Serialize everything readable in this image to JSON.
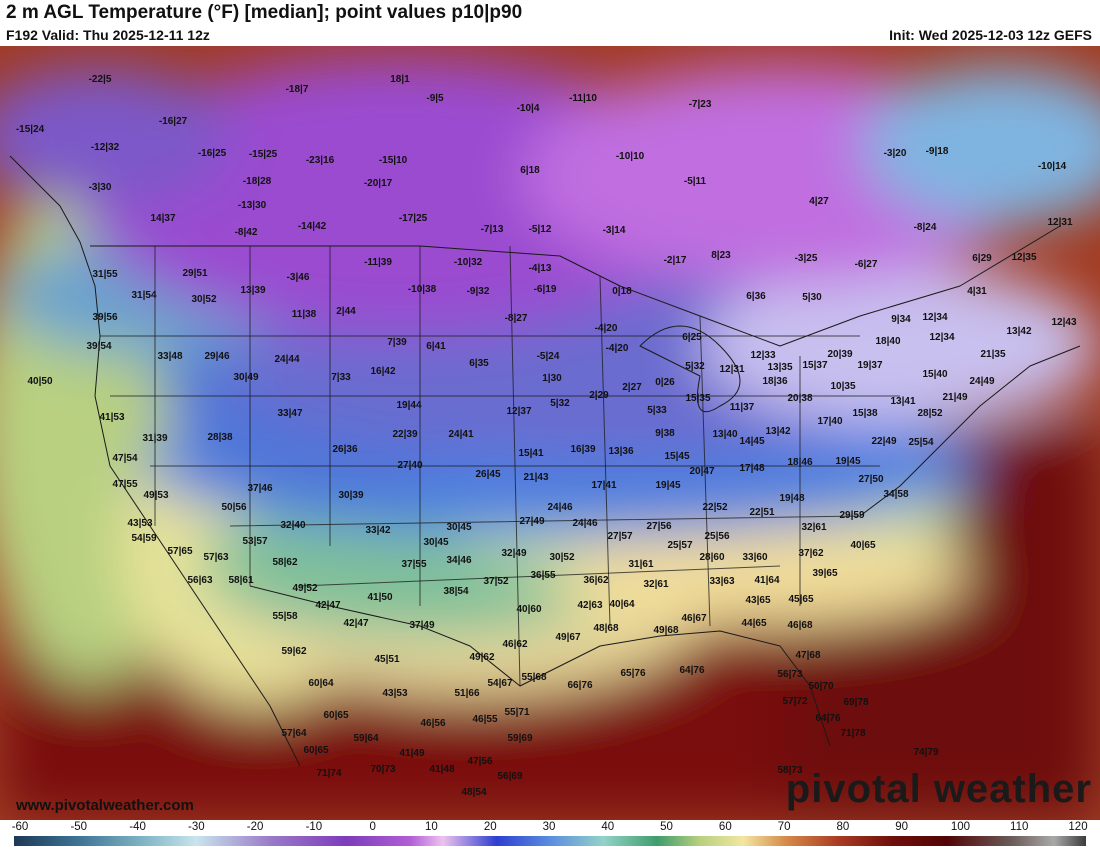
{
  "header": {
    "title": "2 m AGL Temperature (°F) [median]; point values p10|p90",
    "valid": "F192 Valid: Thu 2025-12-11 12z",
    "init": "Init: Wed 2025-12-03 12z GEFS"
  },
  "footer": {
    "website": "www.pivotalweather.com",
    "brand": "pivotal weather"
  },
  "colorbar": {
    "unit": "°F",
    "ticks": [
      "-60",
      "-50",
      "-40",
      "-30",
      "-20",
      "-10",
      "0",
      "10",
      "20",
      "30",
      "40",
      "50",
      "60",
      "70",
      "80",
      "90",
      "100",
      "110",
      "120"
    ]
  },
  "colors": {
    "arctic": "#7d3cba",
    "cold": "#3f5ed6",
    "mild": "#b8d080",
    "warm": "#d68a4a",
    "hot": "#7a1010"
  },
  "point_values": [
    "-22|5",
    "18|1",
    "-18|7",
    "-9|5",
    "-11|10",
    "-7|23",
    "-15|24",
    "-16|27",
    "-12|32",
    "-16|25",
    "-15|25",
    "-23|16",
    "-15|10",
    "-10|4",
    "-10|10",
    "6|18",
    "-3|30",
    "-18|28",
    "-20|17",
    "-13|30",
    "-5|11",
    "4|27",
    "-3|20",
    "-9|18",
    "-10|14",
    "14|37",
    "-8|42",
    "-14|42",
    "-17|25",
    "-7|13",
    "-5|12",
    "-3|14",
    "-8|24",
    "12|31",
    "-2|17",
    "8|23",
    "-3|25",
    "-6|27",
    "6|29",
    "12|35",
    "29|51",
    "-3|46",
    "-11|39",
    "-10|32",
    "-4|13",
    "31|55",
    "31|54",
    "30|52",
    "13|39",
    "-10|38",
    "-9|32",
    "-6|19",
    "0|18",
    "6|36",
    "5|30",
    "4|31",
    "39|56",
    "11|38",
    "2|44",
    "-8|27",
    "9|34",
    "12|34",
    "13|42",
    "12|43",
    "39|54",
    "33|48",
    "29|46",
    "24|44",
    "7|39",
    "6|41",
    "-4|20",
    "6|25",
    "12|33",
    "15|37",
    "20|39",
    "18|40",
    "12|34",
    "21|35",
    "40|50",
    "30|49",
    "7|33",
    "16|42",
    "6|35",
    "-5|24",
    "-4|20",
    "5|32",
    "12|31",
    "13|35",
    "19|37",
    "15|40",
    "24|49",
    "41|53",
    "33|47",
    "19|44",
    "1|30",
    "2|29",
    "2|27",
    "0|26",
    "18|36",
    "10|35",
    "20|38",
    "13|41",
    "21|49",
    "28|52",
    "31|39",
    "28|38",
    "26|36",
    "22|39",
    "24|41",
    "12|37",
    "5|32",
    "5|33",
    "15|35",
    "11|37",
    "15|38",
    "47|54",
    "27|40",
    "15|41",
    "16|39",
    "13|36",
    "9|38",
    "13|40",
    "13|42",
    "17|40",
    "22|49",
    "25|54",
    "47|55",
    "49|53",
    "37|46",
    "30|39",
    "26|45",
    "21|43",
    "15|45",
    "14|45",
    "17|48",
    "18|46",
    "19|45",
    "27|50",
    "34|58",
    "50|56",
    "24|46",
    "24|46",
    "17|41",
    "19|45",
    "20|47",
    "22|52",
    "22|51",
    "19|48",
    "29|59",
    "43|53",
    "32|40",
    "33|42",
    "30|45",
    "27|49",
    "27|57",
    "27|56",
    "25|57",
    "25|56",
    "32|61",
    "40|65",
    "54|59",
    "53|57",
    "30|45",
    "32|49",
    "30|52",
    "31|61",
    "28|60",
    "33|60",
    "37|62",
    "57|65",
    "57|63",
    "58|62",
    "37|55",
    "34|46",
    "36|55",
    "36|62",
    "32|61",
    "33|63",
    "41|64",
    "39|65",
    "56|63",
    "58|61",
    "49|52",
    "41|50",
    "38|54",
    "37|52",
    "42|63",
    "40|64",
    "43|65",
    "45|65",
    "42|47",
    "40|60",
    "48|68",
    "49|68",
    "46|67",
    "44|65",
    "46|68",
    "55|58",
    "42|47",
    "37|49",
    "46|62",
    "49|67",
    "47|68",
    "59|62",
    "45|51",
    "49|62",
    "55|68",
    "56|73",
    "60|64",
    "54|67",
    "66|76",
    "65|76",
    "64|76",
    "50|70",
    "43|53",
    "51|66",
    "57|72",
    "69|78",
    "60|65",
    "55|71",
    "64|76",
    "57|64",
    "46|56",
    "46|55",
    "59|69",
    "71|78",
    "59|64",
    "60|65",
    "41|49",
    "74|79",
    "71|74",
    "70|73",
    "47|56",
    "41|48",
    "56|69",
    "58|73",
    "48|54"
  ]
}
